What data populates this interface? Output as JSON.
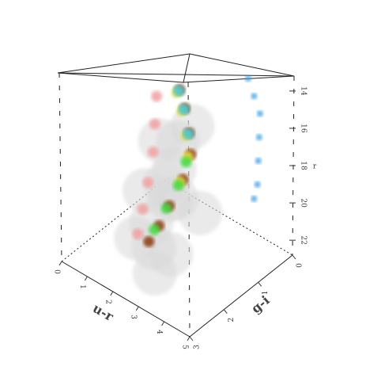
{
  "chart_data": {
    "type": "scatter3d",
    "x_label": "u-r",
    "y_label": "g-i",
    "z_label": "r",
    "xlim": [
      0,
      5
    ],
    "ylim": [
      0,
      3
    ],
    "zlim": [
      13.2,
      22.8
    ],
    "xticks": [
      0,
      1,
      2,
      3,
      4,
      5
    ],
    "yticks": [
      0,
      1,
      2,
      3
    ],
    "zticks": [
      14,
      16,
      18,
      20,
      22
    ],
    "series": [
      {
        "color": "#d9d9d9",
        "x": [
          1.6,
          2.0,
          2.2,
          1.4,
          1.9,
          2.6,
          2.4,
          1.7,
          2.1,
          2.8,
          3.0,
          1.5,
          2.3,
          2.7
        ],
        "y": [
          0.8,
          1.2,
          1.5,
          1.0,
          1.8,
          1.6,
          2.1,
          1.4,
          2.4,
          1.9,
          1.2,
          1.7,
          0.9,
          2.3
        ],
        "z": [
          18.5,
          19.0,
          20.0,
          20.5,
          21.0,
          19.5,
          21.5,
          17.5,
          20.8,
          21.8,
          20.5,
          19.8,
          17.0,
          22.3
        ]
      },
      {
        "color": "#f2a0a0",
        "x": [
          1.3,
          1.5,
          1.7,
          1.9,
          2.1,
          2.3
        ],
        "y": [
          1.2,
          1.4,
          1.6,
          1.9,
          2.2,
          2.5
        ],
        "z": [
          15.8,
          16.8,
          17.8,
          18.8,
          19.6,
          20.3
        ]
      },
      {
        "color": "#8b3a0f",
        "x": [
          1.8,
          2.0,
          2.3,
          2.5,
          2.6,
          2.6,
          2.6,
          2.6
        ],
        "y": [
          0.9,
          0.9,
          1.0,
          1.1,
          1.4,
          1.8,
          2.1,
          2.4
        ],
        "z": [
          15.5,
          16.3,
          17.2,
          18.0,
          18.8,
          19.6,
          20.2,
          20.6
        ]
      },
      {
        "color": "#e6e040",
        "x": [
          1.75,
          1.95,
          2.25,
          2.45,
          2.55
        ],
        "y": [
          0.95,
          0.95,
          1.05,
          1.15,
          1.45
        ],
        "z": [
          15.6,
          16.4,
          17.3,
          18.1,
          18.9
        ]
      },
      {
        "color": "#3fdc3f",
        "x": [
          2.45,
          2.55,
          2.55,
          2.55
        ],
        "y": [
          1.2,
          1.5,
          1.85,
          2.2
        ],
        "z": [
          18.3,
          19.0,
          19.7,
          20.3
        ]
      },
      {
        "color": "#40c8e0",
        "x": [
          1.7,
          1.9,
          2.2
        ],
        "y": [
          0.85,
          0.85,
          0.95
        ],
        "z": [
          15.7,
          16.5,
          17.4
        ]
      },
      {
        "color": "#3aa0e8",
        "x": [
          3.4,
          3.7,
          4.0,
          4.1,
          4.2,
          4.3,
          4.3
        ],
        "y": [
          0.1,
          0.15,
          0.2,
          0.3,
          0.4,
          0.5,
          0.6
        ],
        "z": [
          14.8,
          15.4,
          16.0,
          17.0,
          18.0,
          19.0,
          19.6
        ]
      }
    ]
  }
}
